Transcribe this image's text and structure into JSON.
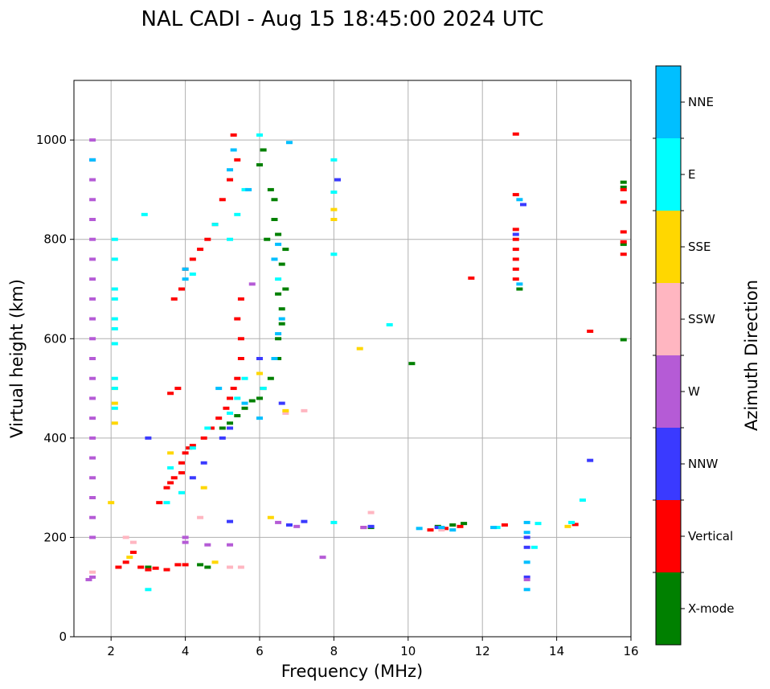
{
  "chart_data": {
    "type": "scatter",
    "title": "NAL CADI - Aug 15 18:45:00 2024 UTC",
    "xlabel": "Frequency (MHz)",
    "ylabel": "Virtual height (km)",
    "xlim": [
      1,
      16
    ],
    "ylim": [
      0,
      1120
    ],
    "xticks": [
      2,
      4,
      6,
      8,
      10,
      12,
      14,
      16
    ],
    "yticks": [
      0,
      200,
      400,
      600,
      800,
      1000
    ],
    "grid": true,
    "colorbar": {
      "label": "Azimuth Direction",
      "categories": [
        {
          "name": "X-mode",
          "color": "#008000"
        },
        {
          "name": "Vertical",
          "color": "#ff0000"
        },
        {
          "name": "NNW",
          "color": "#3a3aff"
        },
        {
          "name": "W",
          "color": "#b55bd6"
        },
        {
          "name": "SSW",
          "color": "#ffb6c1"
        },
        {
          "name": "SSE",
          "color": "#ffd700"
        },
        {
          "name": "E",
          "color": "#00ffff"
        },
        {
          "name": "NNE",
          "color": "#00bfff"
        }
      ]
    },
    "series": [
      {
        "name": "X-mode",
        "points": [
          [
            5.2,
            430
          ],
          [
            5.4,
            445
          ],
          [
            5.6,
            460
          ],
          [
            5.8,
            475
          ],
          [
            6.0,
            480
          ],
          [
            6.1,
            500
          ],
          [
            6.3,
            520
          ],
          [
            6.5,
            560
          ],
          [
            6.5,
            600
          ],
          [
            6.6,
            630
          ],
          [
            6.6,
            660
          ],
          [
            6.7,
            700
          ],
          [
            6.6,
            750
          ],
          [
            6.7,
            780
          ],
          [
            6.5,
            810
          ],
          [
            6.4,
            840
          ],
          [
            6.4,
            880
          ],
          [
            6.3,
            900
          ],
          [
            6.0,
            950
          ],
          [
            6.1,
            980
          ],
          [
            4.6,
            140
          ],
          [
            4.4,
            145
          ],
          [
            3.0,
            140
          ],
          [
            9.0,
            220
          ],
          [
            10.1,
            550
          ],
          [
            10.8,
            222
          ],
          [
            11.2,
            225
          ],
          [
            11.5,
            228
          ],
          [
            13.0,
            700
          ],
          [
            15.8,
            915
          ],
          [
            15.8,
            905
          ],
          [
            15.8,
            790
          ],
          [
            15.8,
            598
          ],
          [
            5.0,
            420
          ],
          [
            6.2,
            800
          ],
          [
            6.5,
            690
          ]
        ]
      },
      {
        "name": "Vertical",
        "points": [
          [
            3.3,
            270
          ],
          [
            3.5,
            300
          ],
          [
            3.7,
            320
          ],
          [
            3.9,
            350
          ],
          [
            4.0,
            370
          ],
          [
            4.2,
            385
          ],
          [
            4.5,
            400
          ],
          [
            4.7,
            420
          ],
          [
            4.9,
            440
          ],
          [
            5.1,
            460
          ],
          [
            5.2,
            480
          ],
          [
            5.3,
            500
          ],
          [
            5.4,
            520
          ],
          [
            5.5,
            560
          ],
          [
            5.5,
            600
          ],
          [
            5.4,
            640
          ],
          [
            5.5,
            680
          ],
          [
            3.7,
            680
          ],
          [
            3.9,
            700
          ],
          [
            4.0,
            740
          ],
          [
            4.2,
            760
          ],
          [
            4.4,
            780
          ],
          [
            4.6,
            800
          ],
          [
            4.8,
            830
          ],
          [
            5.0,
            880
          ],
          [
            5.2,
            920
          ],
          [
            5.4,
            960
          ],
          [
            5.3,
            1010
          ],
          [
            2.2,
            140
          ],
          [
            2.4,
            150
          ],
          [
            2.6,
            170
          ],
          [
            2.8,
            140
          ],
          [
            3.0,
            135
          ],
          [
            3.2,
            138
          ],
          [
            3.5,
            135
          ],
          [
            3.8,
            145
          ],
          [
            4.0,
            145
          ],
          [
            3.6,
            490
          ],
          [
            3.8,
            500
          ],
          [
            8.8,
            220
          ],
          [
            10.6,
            215
          ],
          [
            11.0,
            218
          ],
          [
            11.4,
            222
          ],
          [
            12.6,
            225
          ],
          [
            11.7,
            722
          ],
          [
            12.9,
            1012
          ],
          [
            12.9,
            890
          ],
          [
            12.9,
            820
          ],
          [
            12.9,
            800
          ],
          [
            12.9,
            780
          ],
          [
            12.9,
            760
          ],
          [
            12.9,
            740
          ],
          [
            12.9,
            720
          ],
          [
            15.8,
            900
          ],
          [
            15.8,
            875
          ],
          [
            15.8,
            815
          ],
          [
            15.8,
            795
          ],
          [
            15.8,
            770
          ],
          [
            14.9,
            615
          ],
          [
            14.5,
            226
          ],
          [
            4.1,
            380
          ],
          [
            3.9,
            330
          ],
          [
            3.6,
            310
          ]
        ]
      },
      {
        "name": "NNW",
        "points": [
          [
            8.1,
            920
          ],
          [
            9.0,
            222
          ],
          [
            7.2,
            232
          ],
          [
            6.8,
            225
          ],
          [
            13.2,
            200
          ],
          [
            13.2,
            180
          ],
          [
            13.2,
            120
          ],
          [
            13.1,
            870
          ],
          [
            14.9,
            355
          ],
          [
            4.2,
            320
          ],
          [
            4.5,
            350
          ],
          [
            5.0,
            400
          ],
          [
            5.2,
            420
          ],
          [
            6.6,
            470
          ],
          [
            12.9,
            810
          ],
          [
            3.0,
            400
          ],
          [
            10.8,
            220
          ],
          [
            6.0,
            560
          ],
          [
            5.2,
            232
          ]
        ]
      },
      {
        "name": "W",
        "points": [
          [
            1.5,
            120
          ],
          [
            1.5,
            200
          ],
          [
            1.5,
            240
          ],
          [
            1.5,
            280
          ],
          [
            1.5,
            320
          ],
          [
            1.5,
            360
          ],
          [
            1.5,
            400
          ],
          [
            1.5,
            440
          ],
          [
            1.5,
            480
          ],
          [
            1.5,
            520
          ],
          [
            1.5,
            560
          ],
          [
            1.5,
            600
          ],
          [
            1.5,
            640
          ],
          [
            1.5,
            680
          ],
          [
            1.5,
            720
          ],
          [
            1.5,
            760
          ],
          [
            1.5,
            800
          ],
          [
            1.5,
            840
          ],
          [
            1.5,
            880
          ],
          [
            1.5,
            920
          ],
          [
            1.5,
            960
          ],
          [
            1.5,
            1000
          ],
          [
            4.0,
            200
          ],
          [
            4.0,
            190
          ],
          [
            4.6,
            185
          ],
          [
            5.2,
            185
          ],
          [
            6.5,
            230
          ],
          [
            7.0,
            222
          ],
          [
            8.8,
            220
          ],
          [
            13.2,
            115
          ],
          [
            7.7,
            160
          ],
          [
            5.8,
            710
          ],
          [
            1.4,
            115
          ]
        ]
      },
      {
        "name": "SSW",
        "points": [
          [
            2.4,
            200
          ],
          [
            2.6,
            190
          ],
          [
            5.2,
            140
          ],
          [
            5.5,
            140
          ],
          [
            9.0,
            250
          ],
          [
            10.9,
            215
          ],
          [
            6.7,
            450
          ],
          [
            7.2,
            455
          ],
          [
            1.5,
            130
          ],
          [
            4.4,
            240
          ]
        ]
      },
      {
        "name": "SSE",
        "points": [
          [
            2.1,
            430
          ],
          [
            2.1,
            470
          ],
          [
            2.1,
            500
          ],
          [
            2.0,
            270
          ],
          [
            6.3,
            240
          ],
          [
            6.7,
            455
          ],
          [
            6.0,
            530
          ],
          [
            8.0,
            840
          ],
          [
            8.0,
            860
          ],
          [
            8.7,
            580
          ],
          [
            14.3,
            222
          ],
          [
            4.8,
            150
          ],
          [
            2.5,
            160
          ],
          [
            3.6,
            370
          ],
          [
            4.5,
            300
          ]
        ]
      },
      {
        "name": "E",
        "points": [
          [
            2.1,
            460
          ],
          [
            2.1,
            500
          ],
          [
            2.1,
            520
          ],
          [
            2.1,
            590
          ],
          [
            2.1,
            620
          ],
          [
            2.1,
            640
          ],
          [
            2.1,
            680
          ],
          [
            2.1,
            700
          ],
          [
            2.1,
            760
          ],
          [
            2.1,
            800
          ],
          [
            2.9,
            850
          ],
          [
            3.0,
            95
          ],
          [
            3.5,
            270
          ],
          [
            3.9,
            290
          ],
          [
            4.2,
            380
          ],
          [
            4.6,
            420
          ],
          [
            5.2,
            450
          ],
          [
            5.4,
            480
          ],
          [
            5.6,
            520
          ],
          [
            5.2,
            800
          ],
          [
            5.4,
            850
          ],
          [
            5.6,
            900
          ],
          [
            6.0,
            1010
          ],
          [
            6.5,
            720
          ],
          [
            8.0,
            770
          ],
          [
            8.0,
            960
          ],
          [
            8.0,
            895
          ],
          [
            9.5,
            628
          ],
          [
            13.5,
            228
          ],
          [
            13.4,
            180
          ],
          [
            14.7,
            275
          ],
          [
            14.4,
            230
          ],
          [
            12.4,
            220
          ],
          [
            8.0,
            230
          ],
          [
            4.2,
            730
          ],
          [
            4.8,
            830
          ],
          [
            6.1,
            500
          ],
          [
            3.6,
            340
          ]
        ]
      },
      {
        "name": "NNE",
        "points": [
          [
            1.5,
            960
          ],
          [
            4.0,
            720
          ],
          [
            4.0,
            740
          ],
          [
            5.2,
            940
          ],
          [
            5.3,
            980
          ],
          [
            5.7,
            900
          ],
          [
            6.4,
            560
          ],
          [
            6.5,
            610
          ],
          [
            6.6,
            640
          ],
          [
            6.4,
            760
          ],
          [
            6.5,
            790
          ],
          [
            6.8,
            995
          ],
          [
            10.3,
            218
          ],
          [
            10.9,
            220
          ],
          [
            11.2,
            215
          ],
          [
            12.3,
            220
          ],
          [
            13.2,
            95
          ],
          [
            13.2,
            150
          ],
          [
            13.2,
            210
          ],
          [
            13.2,
            230
          ],
          [
            13.0,
            710
          ],
          [
            13.0,
            880
          ],
          [
            6.0,
            440
          ],
          [
            5.6,
            470
          ],
          [
            4.9,
            500
          ]
        ]
      }
    ]
  }
}
